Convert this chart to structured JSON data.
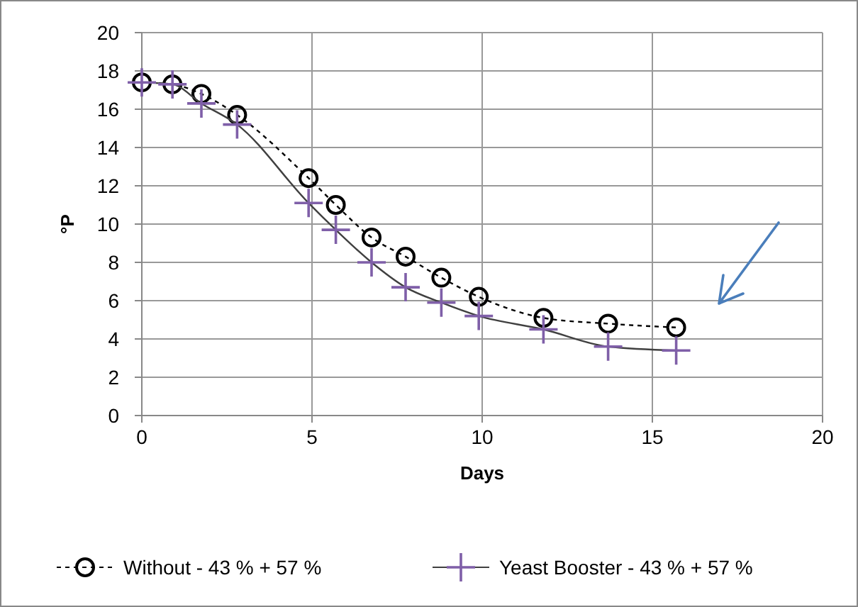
{
  "chart_data": {
    "type": "line",
    "xlabel": "Days",
    "ylabel": "°P",
    "xlim": [
      0,
      20
    ],
    "xticks": [
      0,
      5,
      10,
      15,
      20
    ],
    "ylim": [
      0,
      20
    ],
    "yticks": [
      0,
      2,
      4,
      6,
      8,
      10,
      12,
      14,
      16,
      18,
      20
    ],
    "grid": true,
    "legend": "bottom",
    "x": [
      0,
      0.9,
      1.75,
      2.8,
      4.9,
      5.7,
      6.75,
      7.75,
      8.8,
      9.9,
      11.8,
      13.7,
      15.7
    ],
    "series": [
      {
        "name": "Without - 43 % + 57 %",
        "color": "#000000",
        "marker": "circle",
        "line_style": "dashed",
        "values": [
          17.4,
          17.3,
          16.8,
          15.7,
          12.4,
          11.0,
          9.3,
          8.3,
          7.2,
          6.2,
          5.1,
          4.8,
          4.6
        ]
      },
      {
        "name": "Yeast Booster - 43 % + 57 %",
        "color": "#7f5fa8",
        "marker": "cross",
        "line_style": "solid",
        "values": [
          17.4,
          17.3,
          16.3,
          15.2,
          11.1,
          9.7,
          8.0,
          6.7,
          5.9,
          5.2,
          4.5,
          3.6,
          3.4
        ]
      }
    ]
  }
}
